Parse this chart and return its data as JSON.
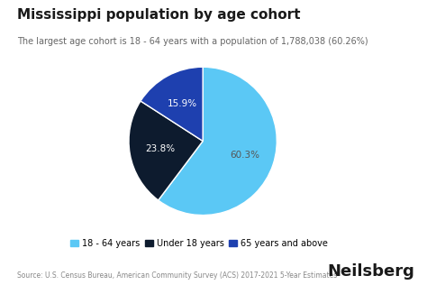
{
  "title": "Mississippi population by age cohort",
  "subtitle": "The largest age cohort is 18 - 64 years with a population of 1,788,038 (60.26%)",
  "slices": [
    60.26,
    23.8,
    15.9
  ],
  "labels": [
    "18 - 64 years",
    "Under 18 years",
    "65 years and above"
  ],
  "colors": [
    "#5bc8f5",
    "#0d1b2e",
    "#1e40af"
  ],
  "pct_labels": [
    "60.3%",
    "23.8%",
    "15.9%"
  ],
  "pct_colors": [
    "#555555",
    "#ffffff",
    "#ffffff"
  ],
  "source": "Source: U.S. Census Bureau, American Community Survey (ACS) 2017-2021 5-Year Estimates",
  "brand": "Neilsberg",
  "background_color": "#ffffff",
  "title_fontsize": 11,
  "subtitle_fontsize": 7,
  "legend_fontsize": 7,
  "pct_fontsize": 7.5,
  "source_fontsize": 5.5,
  "brand_fontsize": 13
}
